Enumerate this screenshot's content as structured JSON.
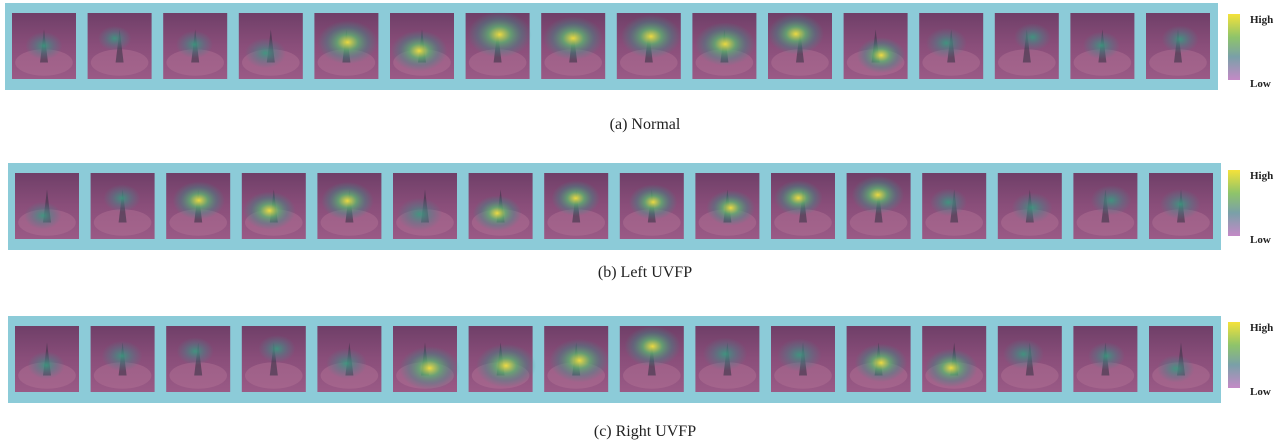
{
  "figures": [
    {
      "caption": "(a) Normal",
      "colorbar": {
        "high": "High",
        "low": "Low"
      }
    },
    {
      "caption": "(b) Left UVFP",
      "colorbar": {
        "high": "High",
        "low": "Low"
      }
    },
    {
      "caption": "(c) Right UVFP",
      "colorbar": {
        "high": "High",
        "low": "Low"
      }
    }
  ]
}
